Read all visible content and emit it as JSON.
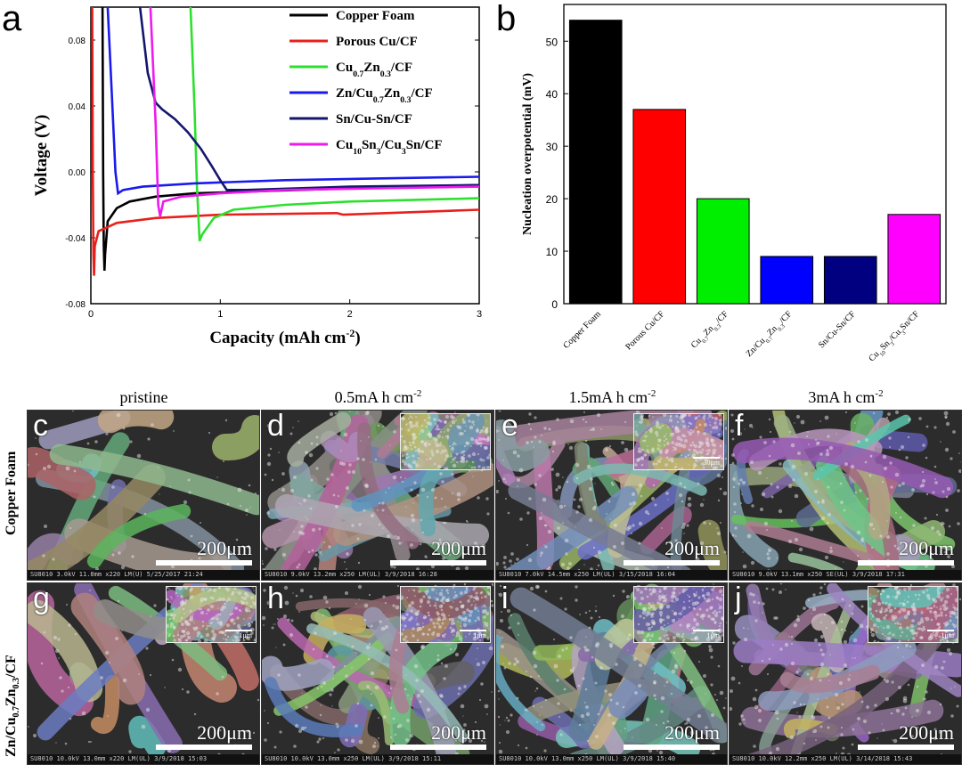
{
  "chart_data": [
    {
      "panel_label": "a",
      "type": "line",
      "xlabel": "Capacity (mAh cm",
      "xlabel_sup": "-2",
      "xlabel_end": ")",
      "ylabel": "Voltage (V)",
      "xlim": [
        0,
        3
      ],
      "ylim": [
        -0.08,
        0.1
      ],
      "xticks": [
        "0",
        "1",
        "2",
        "3"
      ],
      "yticks": [
        "-0.08",
        "-0.04",
        "0.00",
        "0.04",
        "0.08"
      ],
      "legend_position": "top-right",
      "series": [
        {
          "name": "Copper Foam",
          "color": "#000000",
          "points": [
            [
              0.09,
              0.1
            ],
            [
              0.095,
              0.0
            ],
            [
              0.1,
              -0.045
            ],
            [
              0.105,
              -0.06
            ],
            [
              0.11,
              -0.05
            ],
            [
              0.13,
              -0.03
            ],
            [
              0.2,
              -0.022
            ],
            [
              0.3,
              -0.018
            ],
            [
              0.5,
              -0.015
            ],
            [
              0.8,
              -0.013
            ],
            [
              1.2,
              -0.012
            ],
            [
              2.0,
              -0.01
            ],
            [
              3.0,
              -0.008
            ]
          ]
        },
        {
          "name": "Porous Cu/CF",
          "color": "#e8201c",
          "points": [
            [
              0.01,
              0.1
            ],
            [
              0.015,
              0.0
            ],
            [
              0.02,
              -0.05
            ],
            [
              0.025,
              -0.063
            ],
            [
              0.03,
              -0.045
            ],
            [
              0.06,
              -0.036
            ],
            [
              0.2,
              -0.031
            ],
            [
              0.5,
              -0.028
            ],
            [
              1.0,
              -0.026
            ],
            [
              1.9,
              -0.025
            ],
            [
              1.95,
              -0.026
            ],
            [
              3.0,
              -0.023
            ]
          ]
        },
        {
          "name": "Cu",
          "name_parts": [
            "Cu",
            "0.7",
            "Zn",
            "0.3",
            "/CF"
          ],
          "color": "#2ee02e",
          "points": [
            [
              0.77,
              0.1
            ],
            [
              0.8,
              0.04
            ],
            [
              0.82,
              -0.01
            ],
            [
              0.84,
              -0.042
            ],
            [
              0.86,
              -0.038
            ],
            [
              0.95,
              -0.028
            ],
            [
              1.1,
              -0.023
            ],
            [
              1.5,
              -0.02
            ],
            [
              2.0,
              -0.018
            ],
            [
              3.0,
              -0.016
            ]
          ]
        },
        {
          "name": "Zn/Cu",
          "name_parts": [
            "Zn/Cu",
            "0.7",
            "Zn",
            "0.3",
            "/CF"
          ],
          "color": "#1a1aee",
          "points": [
            [
              0.13,
              0.1
            ],
            [
              0.16,
              0.05
            ],
            [
              0.19,
              0.0
            ],
            [
              0.21,
              -0.013
            ],
            [
              0.25,
              -0.011
            ],
            [
              0.4,
              -0.009
            ],
            [
              0.8,
              -0.007
            ],
            [
              1.5,
              -0.005
            ],
            [
              2.2,
              -0.004
            ],
            [
              3.0,
              -0.003
            ]
          ]
        },
        {
          "name": "Sn/Cu-Sn/CF",
          "color": "#15156e",
          "points": [
            [
              0.38,
              0.1
            ],
            [
              0.44,
              0.06
            ],
            [
              0.5,
              0.042
            ],
            [
              0.55,
              0.038
            ],
            [
              0.65,
              0.032
            ],
            [
              0.75,
              0.024
            ],
            [
              0.85,
              0.014
            ],
            [
              0.93,
              0.004
            ],
            [
              1.0,
              -0.005
            ],
            [
              1.05,
              -0.011
            ],
            [
              1.2,
              -0.011
            ],
            [
              2.0,
              -0.009
            ],
            [
              3.0,
              -0.008
            ]
          ]
        },
        {
          "name": "Cu",
          "name_parts": [
            "Cu",
            "10",
            "Sn",
            "3",
            "/Cu",
            "3",
            "Sn/CF"
          ],
          "color": "#ee1aee",
          "points": [
            [
              0.46,
              0.1
            ],
            [
              0.5,
              0.03
            ],
            [
              0.52,
              -0.02
            ],
            [
              0.535,
              -0.027
            ],
            [
              0.56,
              -0.018
            ],
            [
              0.7,
              -0.015
            ],
            [
              1.0,
              -0.013
            ],
            [
              1.5,
              -0.011
            ],
            [
              2.2,
              -0.01
            ],
            [
              3.0,
              -0.009
            ]
          ]
        }
      ]
    },
    {
      "panel_label": "b",
      "type": "bar",
      "ylabel": "Nucleation overpotential (mV)",
      "ylim": [
        0,
        57
      ],
      "yticks": [
        "0",
        "10",
        "20",
        "30",
        "40",
        "50"
      ],
      "categories": [
        "Copper Foam",
        "Porous Cu/CF",
        "Cu0.7Zn0.3/CF",
        "Zn/Cu0.7Zn0.3/CF",
        "Sn/Cu-Sn/CF",
        "Cu10Sn3/Cu3Sn/CF"
      ],
      "category_parts": [
        [
          "Copper Foam"
        ],
        [
          "Porous Cu/CF"
        ],
        [
          "Cu",
          "0.7",
          "Zn",
          "0.3",
          "/CF"
        ],
        [
          "Zn/Cu",
          "0.7",
          "Zn",
          "0.3",
          "/CF"
        ],
        [
          "Sn/Cu-Sn/CF"
        ],
        [
          "Cu",
          "10",
          "Sn",
          "3",
          "/Cu",
          "3",
          "Sn/CF"
        ]
      ],
      "values": [
        54,
        37,
        20,
        9,
        9,
        17
      ],
      "colors": [
        "#000000",
        "#ff0000",
        "#00ee00",
        "#0000ff",
        "#000080",
        "#ff00ff"
      ]
    }
  ],
  "column_headings": {
    "pristine": "pristine",
    "h05": "0.5mA h cm",
    "h15": "1.5mA h cm",
    "h3": "3mA h cm",
    "sup": "-2"
  },
  "row_labels": {
    "copper": "Copper Foam",
    "zn_parts": [
      "Zn/Cu",
      "0.7",
      "Zn",
      "0.3",
      "/CF"
    ]
  },
  "sem_panels": [
    {
      "label": "c",
      "scale": "200μm",
      "footer": "SU8010 3.0kV 11.8mm x220 LM(U) 5/25/2017 21:24",
      "inset": null
    },
    {
      "label": "d",
      "scale": "200μm",
      "footer": "SU8010 9.0kV 13.2mm x250 LM(UL) 3/9/2018 16:28",
      "inset": ""
    },
    {
      "label": "e",
      "scale": "200μm",
      "footer": "SU8010 7.0kV 14.5mm x250 LM(UL) 3/15/2018 16:04",
      "inset": "30μm"
    },
    {
      "label": "f",
      "scale": "200μm",
      "footer": "SU8010 9.0kV 13.1mm x250 SE(UL) 3/9/2018 17:31",
      "inset": null
    },
    {
      "label": "g",
      "scale": "200μm",
      "footer": "SU8010 10.0kV 13.0mm x220 LM(UL) 3/9/2018 15:03",
      "inset": "1μm"
    },
    {
      "label": "h",
      "scale": "200μm",
      "footer": "SU8010 10.0kV 13.0mm x250 LM(UL) 3/9/2018 15:11",
      "inset": "1μm"
    },
    {
      "label": "i",
      "scale": "200μm",
      "footer": "SU8010 10.0kV 13.0mm x250 LM(UL) 3/9/2018 15:40",
      "inset": "1μm"
    },
    {
      "label": "j",
      "scale": "200μm",
      "footer": "SU8010 10.0kV 12.2mm x250 LM(UL) 3/14/2018 15:43",
      "inset": "1μm"
    }
  ]
}
